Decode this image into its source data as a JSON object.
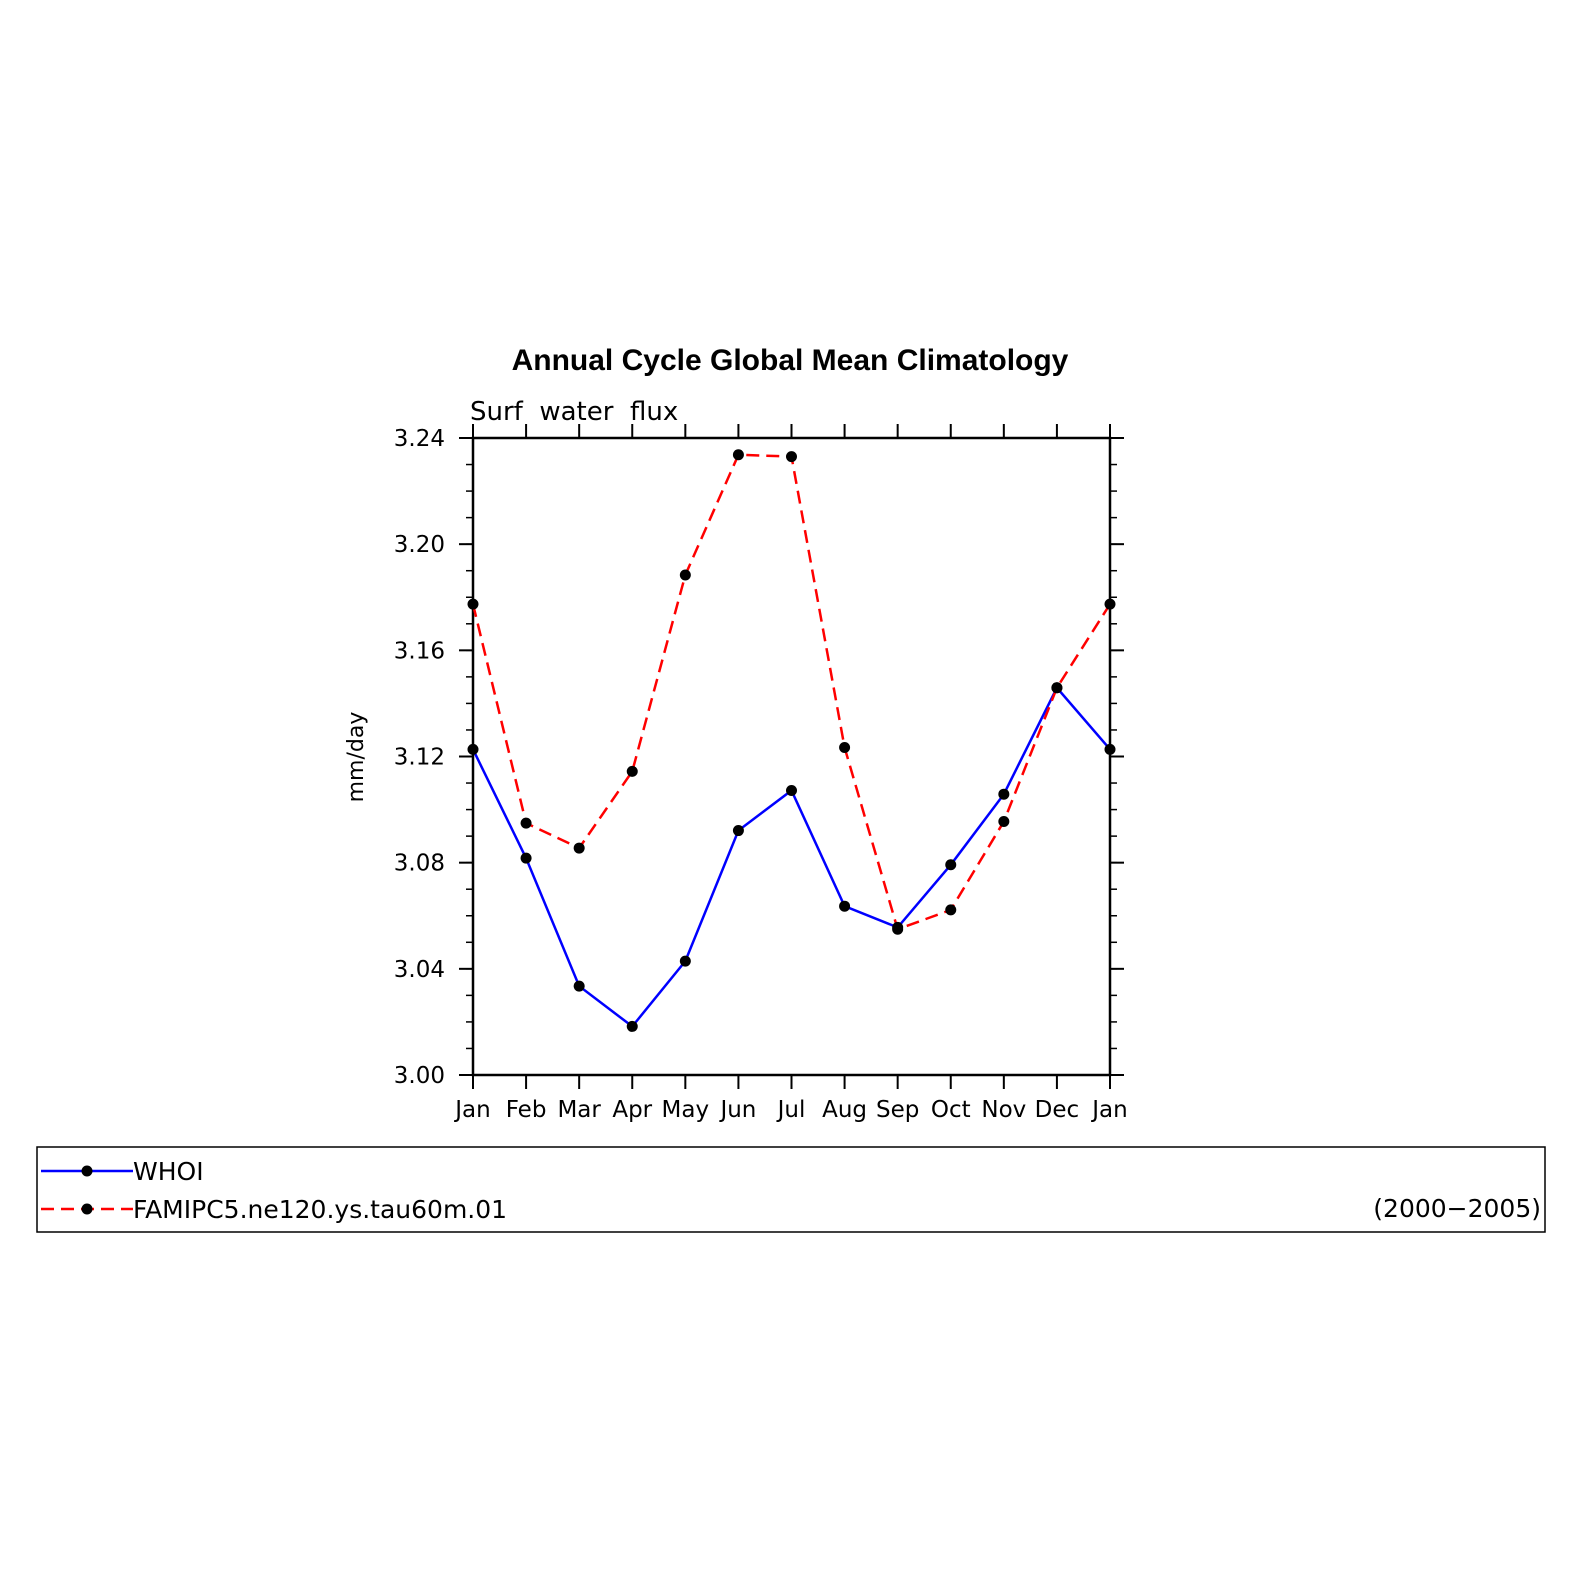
{
  "colors": {
    "background": "#ffffff",
    "axis": "#000000",
    "whoi": "#0000ff",
    "model": "#ff0000",
    "marker": "#000000"
  },
  "chart_data": {
    "type": "line",
    "title": "Annual Cycle Global Mean Climatology",
    "subtitle": "Surf  water  flux",
    "xlabel": "",
    "ylabel": "mm/day",
    "categories": [
      "Jan",
      "Feb",
      "Mar",
      "Apr",
      "May",
      "Jun",
      "Jul",
      "Aug",
      "Sep",
      "Oct",
      "Nov",
      "Dec",
      "Jan"
    ],
    "ylim": [
      3.0,
      3.24
    ],
    "yticks": [
      "3.00",
      "3.04",
      "3.08",
      "3.12",
      "3.16",
      "3.20",
      "3.24"
    ],
    "grid": false,
    "legend_position": "below",
    "series": [
      {
        "name": "WHOI",
        "style": "solid",
        "values": [
          3.1227,
          3.0817,
          3.0335,
          3.0183,
          3.0429,
          3.0921,
          3.1072,
          3.0636,
          3.0556,
          3.0792,
          3.1058,
          3.1459,
          3.1227
        ]
      },
      {
        "name": "FAMIPC5.ne120.ys.tau60m.01",
        "style": "dashed",
        "values": [
          3.1774,
          3.0949,
          3.0855,
          3.1144,
          3.1884,
          3.2337,
          3.233,
          3.1234,
          3.0549,
          3.0622,
          3.0955,
          3.1459,
          3.1774
        ]
      }
    ],
    "years_label": "(2000−2005)"
  }
}
